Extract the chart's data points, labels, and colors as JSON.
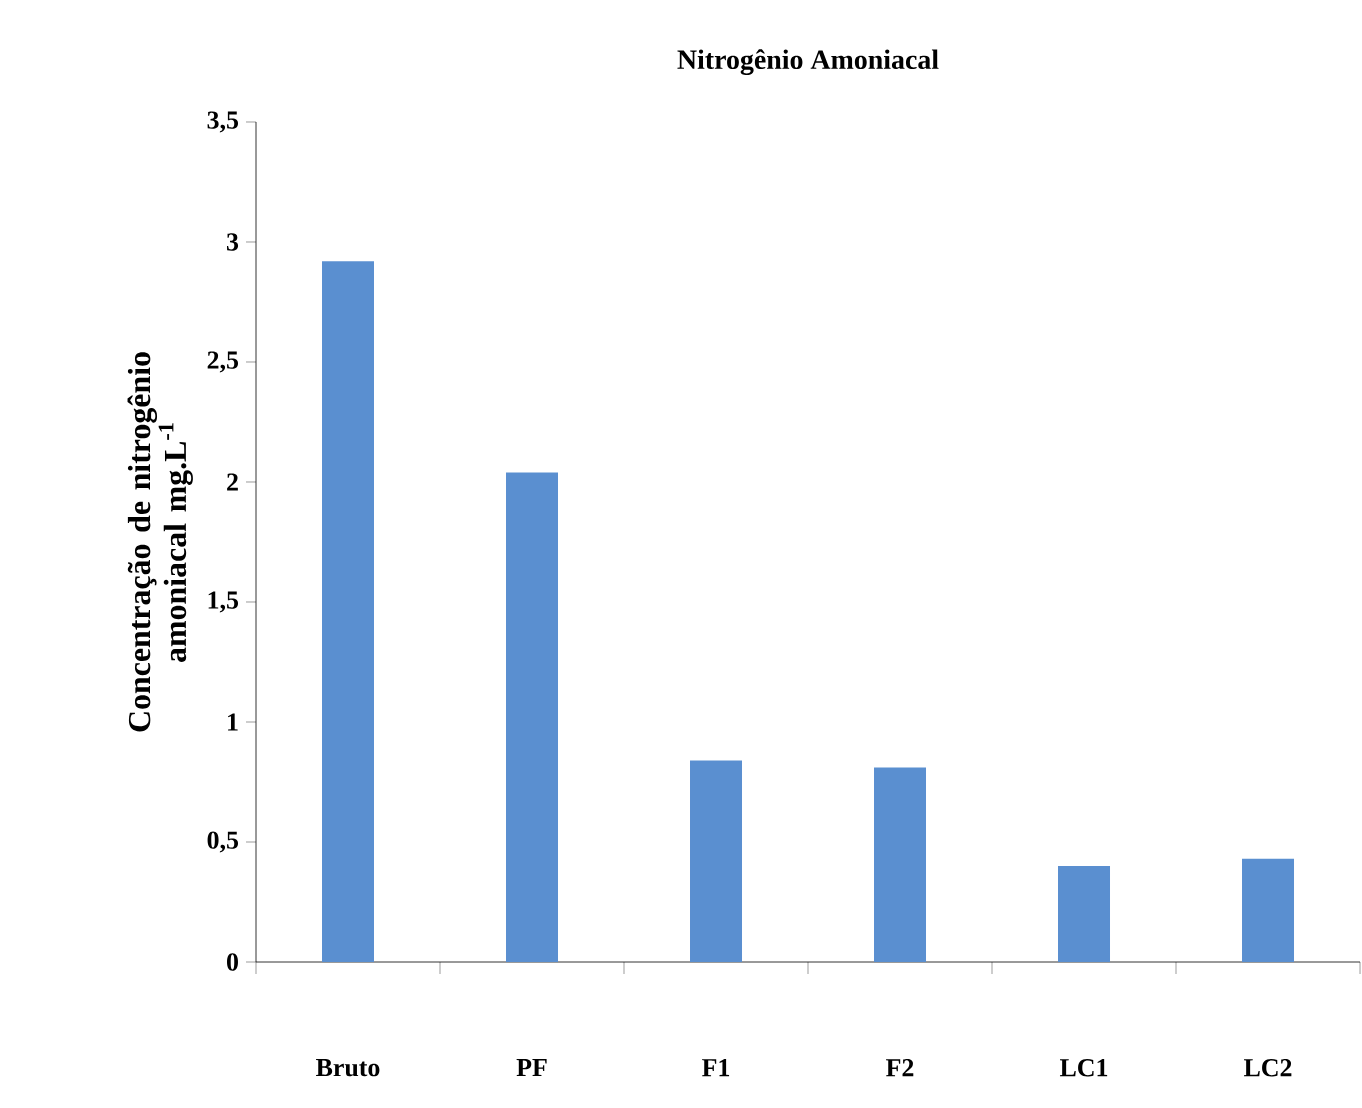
{
  "chart_data": {
    "type": "bar",
    "title": "Nitrogênio Amoniacal",
    "ylabel": "Concentração de nitrogênio amoniacal mg.L$^{-1}$",
    "categories": [
      "Bruto",
      "PF",
      "F1",
      "F2",
      "LC1",
      "LC2"
    ],
    "values": [
      2.92,
      2.04,
      0.84,
      0.81,
      0.4,
      0.43
    ],
    "color": "#5a8fd0",
    "ylim": [
      0,
      3.5
    ],
    "yticks": [
      0,
      {
        "value": 0.5,
        "label": "0,5"
      },
      1,
      {
        "value": 1.5,
        "label": "1,5"
      },
      2,
      {
        "value": 2.5,
        "label": "2,5"
      },
      3,
      {
        "value": 3.5,
        "label": "3,5"
      }
    ]
  }
}
